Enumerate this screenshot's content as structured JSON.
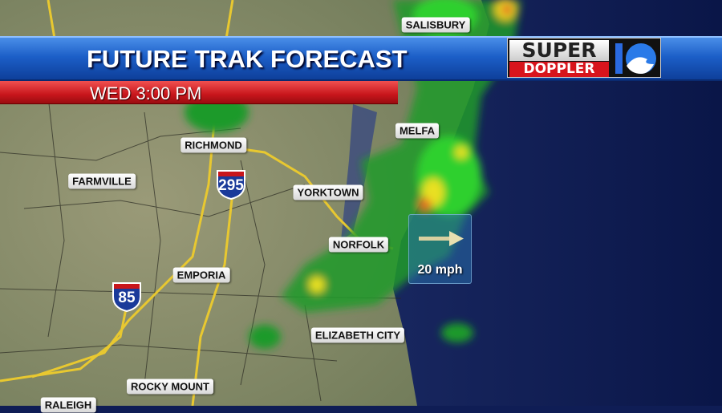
{
  "header": {
    "title": "FUTURE TRAK FORECAST",
    "time": "WED 3:00 PM"
  },
  "logo": {
    "line1": "SUPER",
    "line2": "DOPPLER",
    "number": "10"
  },
  "cities": [
    "SALISBURY",
    "RICHMOND",
    "FARMVILLE",
    "YORKTOWN",
    "NORFOLK",
    "MELFA",
    "EMPORIA",
    "ELIZABETH CITY",
    "ROCKY MOUNT",
    "RALEIGH"
  ],
  "interstates": [
    "295",
    "85"
  ],
  "wind": {
    "speed": "20 mph",
    "direction": "east",
    "icon": "arrow-right-icon"
  },
  "colors": {
    "banner_blue": "#1c5fc8",
    "time_red": "#c8161c",
    "ocean": "#0f1d55",
    "land": "#8a8a68",
    "radar_light": "#2fb82f",
    "radar_heavy": "#e8e020",
    "radar_intense": "#e87020",
    "highway": "#f0d040"
  }
}
